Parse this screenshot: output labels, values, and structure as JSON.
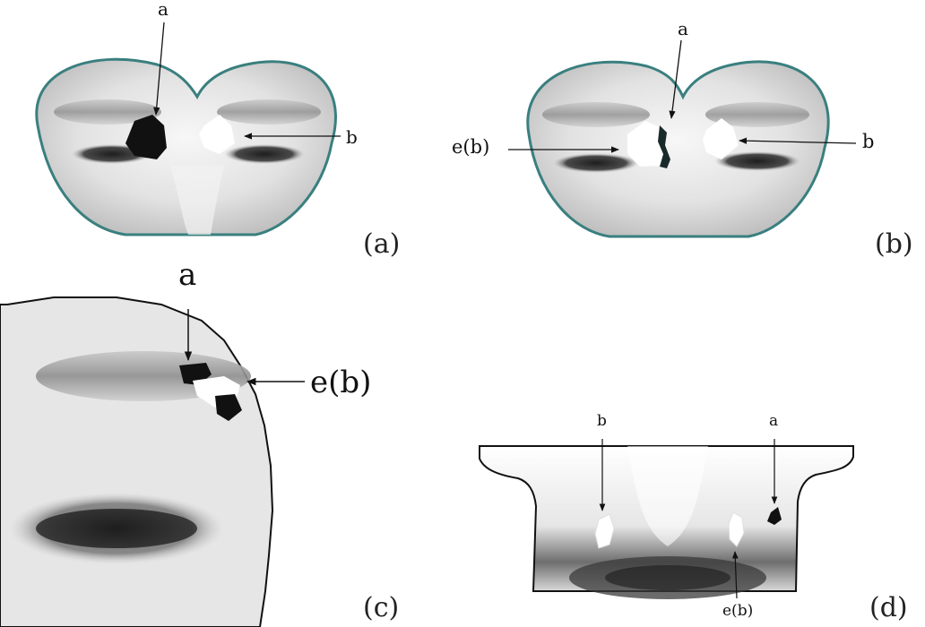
{
  "figure": {
    "panels": [
      {
        "id": "a",
        "label": "(a)",
        "annotations": {
          "a": "a",
          "b": "b"
        }
      },
      {
        "id": "b",
        "label": "(b)",
        "annotations": {
          "a": "a",
          "b": "b",
          "eb": "e(b)"
        }
      },
      {
        "id": "c",
        "label": "(c)",
        "annotations": {
          "a": "a",
          "eb": "e(b)"
        }
      },
      {
        "id": "d",
        "label": "(d)",
        "annotations": {
          "a": "a",
          "b": "b",
          "eb": "e(b)"
        }
      }
    ]
  },
  "colors": {
    "outline": "#3a7f7f",
    "marker_dark": "#111111",
    "marker_light": "#ffffff"
  }
}
